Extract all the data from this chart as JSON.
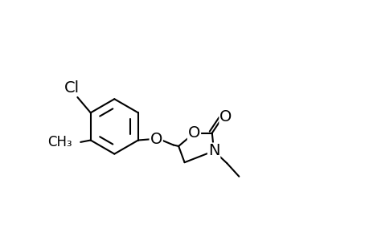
{
  "bg_color": "#ffffff",
  "line_color": "#000000",
  "lw": 1.5,
  "fs": 14,
  "bx": 0.21,
  "by": 0.47,
  "br": 0.12,
  "ether_O_label": "O",
  "ring_O_label": "O",
  "ring_N_label": "N",
  "carbonyl_O_label": "O",
  "cl_label": "Cl",
  "me_label": "CH₃"
}
